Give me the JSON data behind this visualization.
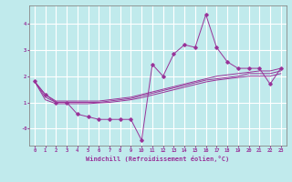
{
  "xlabel": "Windchill (Refroidissement éolien,°C)",
  "background_color": "#c0eaec",
  "grid_color": "#ffffff",
  "line_color": "#993399",
  "xlim": [
    -0.5,
    23.5
  ],
  "ylim": [
    -0.65,
    4.7
  ],
  "x": [
    0,
    1,
    2,
    3,
    4,
    5,
    6,
    7,
    8,
    9,
    10,
    11,
    12,
    13,
    14,
    15,
    16,
    17,
    18,
    19,
    20,
    21,
    22,
    23
  ],
  "y_main": [
    1.8,
    1.3,
    1.0,
    1.0,
    0.55,
    0.45,
    0.35,
    0.35,
    0.35,
    0.35,
    -0.45,
    2.45,
    2.0,
    2.85,
    3.2,
    3.1,
    4.35,
    3.1,
    2.55,
    2.3,
    2.3,
    2.3,
    1.7,
    2.3
  ],
  "y_line2": [
    1.8,
    1.3,
    1.05,
    1.05,
    1.05,
    1.05,
    1.05,
    1.1,
    1.15,
    1.2,
    1.3,
    1.4,
    1.5,
    1.6,
    1.7,
    1.8,
    1.9,
    2.0,
    2.05,
    2.1,
    2.15,
    2.2,
    2.2,
    2.3
  ],
  "y_line3": [
    1.8,
    1.2,
    1.0,
    1.0,
    1.0,
    1.0,
    1.0,
    1.05,
    1.1,
    1.15,
    1.25,
    1.35,
    1.45,
    1.55,
    1.65,
    1.75,
    1.85,
    1.9,
    1.95,
    2.0,
    2.1,
    2.1,
    2.1,
    2.2
  ],
  "y_line4": [
    1.8,
    1.1,
    0.95,
    0.95,
    0.95,
    0.95,
    0.98,
    1.0,
    1.05,
    1.1,
    1.18,
    1.28,
    1.38,
    1.48,
    1.58,
    1.68,
    1.78,
    1.85,
    1.9,
    1.95,
    2.0,
    2.0,
    2.0,
    2.1
  ]
}
